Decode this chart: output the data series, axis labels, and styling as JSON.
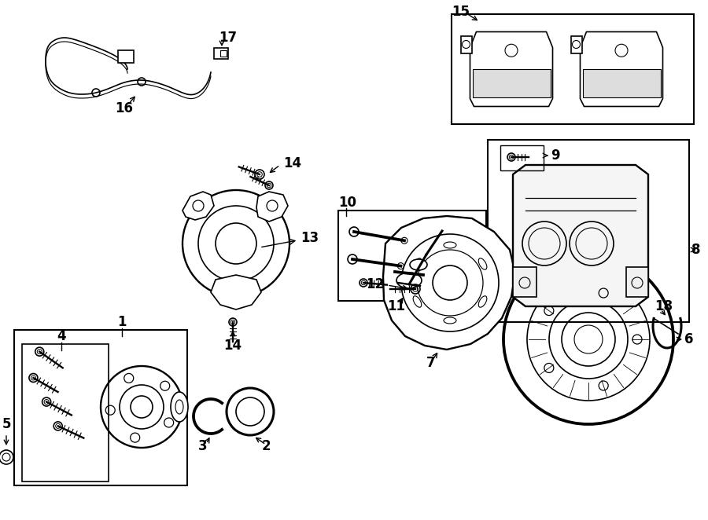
{
  "bg_color": "#ffffff",
  "line_color": "#000000",
  "fig_width": 9.0,
  "fig_height": 6.62,
  "dpi": 100
}
